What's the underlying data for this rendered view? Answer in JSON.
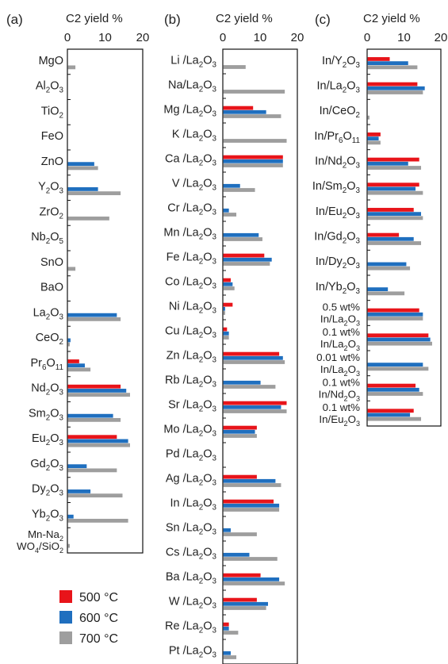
{
  "legend": {
    "items": [
      {
        "label": "500 °C",
        "color": "#e8141a"
      },
      {
        "label": "600 °C",
        "color": "#1f6fbf"
      },
      {
        "label": "700 °C",
        "color": "#9e9e9e"
      }
    ]
  },
  "chart_data": [
    {
      "type": "bar",
      "panel": "(a)",
      "xlabel": "C2 yield %",
      "xlim": [
        0,
        20
      ],
      "xticks": [
        0,
        10,
        20
      ],
      "categories": [
        "MgO",
        "Al₂O₃",
        "TiO₂",
        "FeO",
        "ZnO",
        "Y₂O₃",
        "ZrO₂",
        "Nb₂O₅",
        "SnO",
        "BaO",
        "La₂O₃",
        "CeO₂",
        "Pr₆O₁₁",
        "Nd₂O₃",
        "Sm₂O₃",
        "Eu₂O₃",
        "Gd₂O₃",
        "Dy₂O₃",
        "Yb₂O₃",
        "Mn-Na₂ WO₄/SiO₂"
      ],
      "series": [
        {
          "name": "500 °C",
          "values": [
            0,
            0,
            0,
            0,
            0,
            0,
            0,
            0,
            0,
            0,
            0,
            0,
            3,
            14,
            0,
            13,
            0,
            0,
            0,
            0
          ]
        },
        {
          "name": "600 °C",
          "values": [
            0,
            0,
            0,
            0,
            7,
            8,
            0,
            0,
            0,
            0,
            13,
            0.7,
            4.5,
            15.5,
            12,
            16,
            5,
            6,
            1.5,
            0
          ]
        },
        {
          "name": "700 °C",
          "values": [
            2,
            0,
            0,
            0,
            8,
            14,
            11,
            0,
            2,
            0,
            14,
            0.5,
            6,
            16.5,
            14,
            16.5,
            13,
            14.5,
            16,
            0.5
          ]
        }
      ]
    },
    {
      "type": "bar",
      "panel": "(b)",
      "xlabel": "C2 yield %",
      "xlim": [
        0,
        20
      ],
      "xticks": [
        0,
        10,
        20
      ],
      "categories": [
        "Li /La₂O₃",
        "Na/La₂O₃",
        "Mg /La₂O₃",
        "K /La₂O₃",
        "Ca /La₂O₃",
        "V /La₂O₃",
        "Cr /La₂O₃",
        "Mn /La₂O₃",
        "Fe /La₂O₃",
        "Co /La₂O₃",
        "Ni /La₂O₃",
        "Cu /La₂O₃",
        "Zn /La₂O₃",
        "Rb /La₂O₃",
        "Sr /La₂O₃",
        "Mo /La₂O₃",
        "Pd /La₂O₃",
        "Ag /La₂O₃",
        "In /La₂O₃",
        "Sn /La₂O₃",
        "Cs /La₂O₃",
        "Ba /La₂O₃",
        "W /La₂O₃",
        "Re /La₂O₃",
        "Pt /La₂O₃"
      ],
      "series": [
        {
          "name": "500 °C",
          "values": [
            0,
            0,
            8,
            0,
            16,
            0,
            0,
            0,
            11,
            2,
            2.5,
            1,
            15,
            0,
            17,
            9,
            0,
            9,
            13.5,
            0,
            0,
            10,
            9,
            1.5,
            0
          ]
        },
        {
          "name": "600 °C",
          "values": [
            0,
            0,
            11.5,
            0,
            16,
            4.5,
            1.5,
            9.5,
            13,
            2.5,
            0.5,
            1.5,
            16,
            10,
            15.5,
            8.5,
            0,
            14,
            15,
            2,
            7,
            15,
            12,
            1.5,
            2
          ]
        },
        {
          "name": "700 °C",
          "values": [
            6,
            16.5,
            15.5,
            17,
            16,
            8.5,
            3.5,
            10.5,
            12.5,
            3,
            0.5,
            1.5,
            16.5,
            14,
            17,
            9,
            0,
            15.5,
            15,
            9,
            14.5,
            16.5,
            11.5,
            4,
            3.5
          ]
        }
      ]
    },
    {
      "type": "bar",
      "panel": "(c)",
      "xlabel": "C2 yield %",
      "xlim": [
        0,
        20
      ],
      "xticks": [
        0,
        10,
        20
      ],
      "categories": [
        "In/Y₂O₃",
        "In/La₂O₃",
        "In/CeO₂",
        "In/Pr₆O₁₁",
        "In/Nd₂O₃",
        "In/Sm₂O₃",
        "In/Eu₂O₃",
        "In/Gd₂O₃",
        "In/Dy₂O₃",
        "In/Yb₂O₃",
        "0.5 wt% In/La₂O₃",
        "0.1 wt% In/La₂O₃",
        "0.01 wt% In/La₂O₃",
        "0.1 wt% In/Nd₂O₃",
        "0.1 wt% In/Eu₂O₃"
      ],
      "series": [
        {
          "name": "500 °C",
          "values": [
            6,
            13.5,
            0,
            3.5,
            14,
            14,
            12.5,
            8.5,
            0,
            0,
            14,
            16.5,
            0,
            13,
            12.5
          ]
        },
        {
          "name": "600 °C",
          "values": [
            11,
            15.5,
            0,
            3,
            11,
            13,
            14.5,
            12.5,
            10.5,
            5.5,
            15,
            17,
            15,
            14,
            11.5
          ]
        },
        {
          "name": "700 °C",
          "values": [
            13.5,
            15,
            0.5,
            3.5,
            14.5,
            15,
            15,
            14.5,
            11.5,
            10,
            15,
            17.5,
            16.5,
            15,
            14.5
          ]
        }
      ]
    }
  ]
}
